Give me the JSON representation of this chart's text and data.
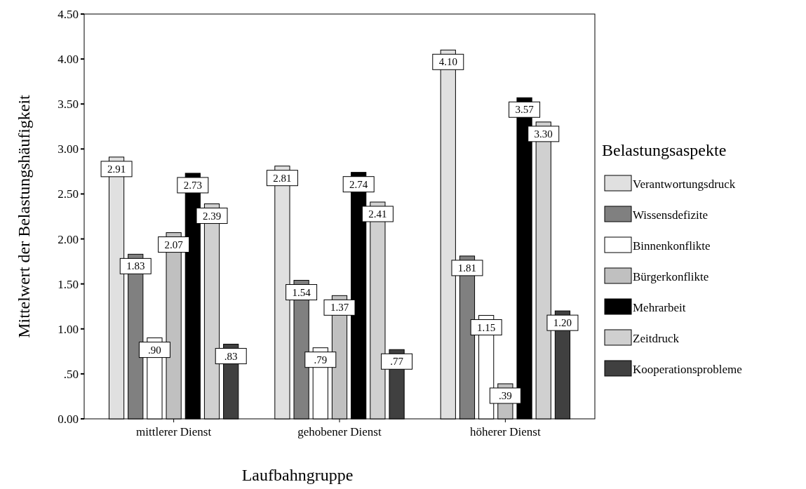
{
  "chart_data": {
    "type": "bar",
    "xlabel": "Laufbahngruppe",
    "ylabel": "Mittelwert der Belastungshäufigkeit",
    "legend_title": "Belastungsaspekte",
    "legend": "right",
    "categories": [
      "mittlerer Dienst",
      "gehobener Dienst",
      "höherer Dienst"
    ],
    "ylim": [
      0,
      4.5
    ],
    "yticks": [
      {
        "value": 0,
        "label": "0.00"
      },
      {
        "value": 0.5,
        "label": ".50"
      },
      {
        "value": 1,
        "label": "1.00"
      },
      {
        "value": 1.5,
        "label": "1.50"
      },
      {
        "value": 2,
        "label": "2.00"
      },
      {
        "value": 2.5,
        "label": "2.50"
      },
      {
        "value": 3,
        "label": "3.00"
      },
      {
        "value": 3.5,
        "label": "3.50"
      },
      {
        "value": 4,
        "label": "4.00"
      },
      {
        "value": 4.5,
        "label": "4.50"
      }
    ],
    "series": [
      {
        "name": "Verantwortungsdruck",
        "color": "#e0e0e0",
        "values": [
          2.91,
          2.81,
          4.1
        ],
        "value_labels": [
          "2.91",
          "2.81",
          "4.10"
        ]
      },
      {
        "name": "Wissensdefizite",
        "color": "#808080",
        "values": [
          1.83,
          1.54,
          1.81
        ],
        "value_labels": [
          "1.83",
          "1.54",
          "1.81"
        ]
      },
      {
        "name": "Binnenkonflikte",
        "color": "#ffffff",
        "values": [
          0.9,
          0.79,
          1.15
        ],
        "value_labels": [
          ".90",
          ".79",
          "1.15"
        ]
      },
      {
        "name": "Bürgerkonflikte",
        "color": "#c0c0c0",
        "values": [
          2.07,
          1.37,
          0.39
        ],
        "value_labels": [
          "2.07",
          "1.37",
          ".39"
        ]
      },
      {
        "name": "Mehrarbeit",
        "color": "#000000",
        "values": [
          2.73,
          2.74,
          3.57
        ],
        "value_labels": [
          "2.73",
          "2.74",
          "3.57"
        ]
      },
      {
        "name": "Zeitdruck",
        "color": "#d0d0d0",
        "values": [
          2.39,
          2.41,
          3.3
        ],
        "value_labels": [
          "2.39",
          "2.41",
          "3.30"
        ]
      },
      {
        "name": "Kooperationsprobleme",
        "color": "#404040",
        "values": [
          0.83,
          0.77,
          1.2
        ],
        "value_labels": [
          ".83",
          ".77",
          "1.20"
        ]
      }
    ]
  }
}
